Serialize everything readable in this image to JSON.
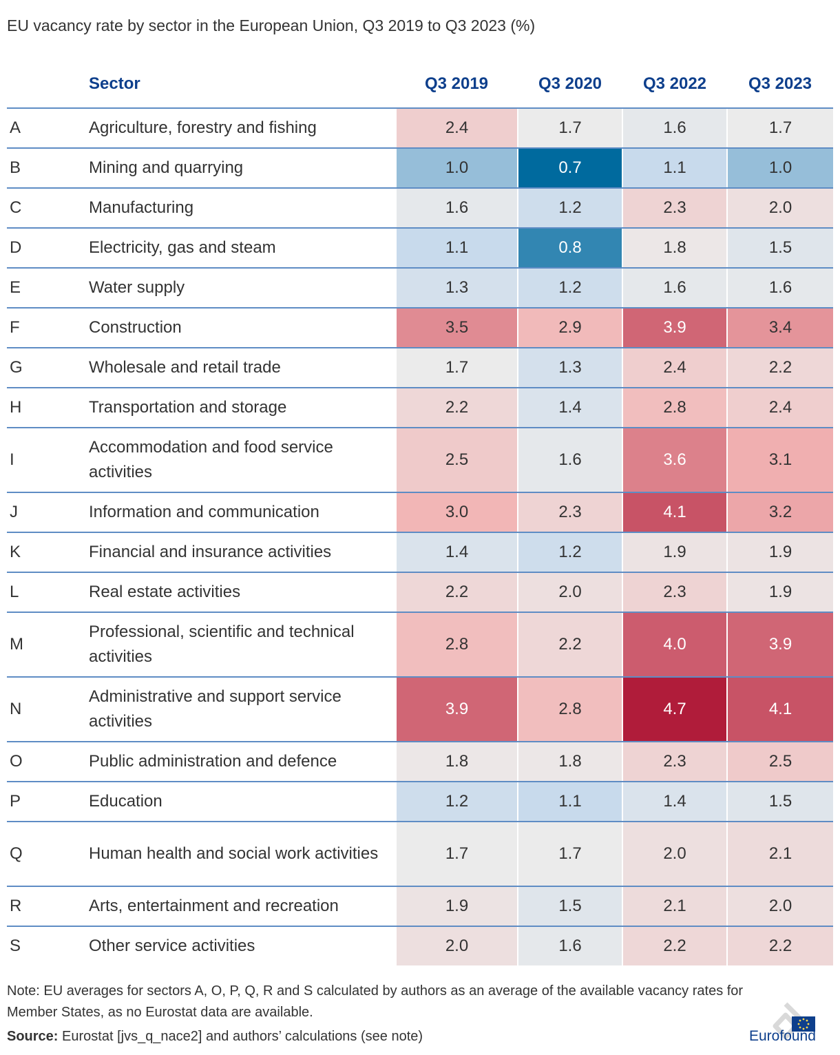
{
  "title": "EU vacancy rate by sector in the European Union, Q3 2019 to Q3 2023 (%)",
  "header": {
    "sector": "Sector",
    "q2019": "Q3 2019",
    "q2020": "Q3 2020",
    "q2022": "Q3 2022",
    "q2023": "Q3 2023"
  },
  "chart_data": {
    "type": "heatmap",
    "title": "EU vacancy rate by sector in the European Union, Q3 2019 to Q3 2023 (%)",
    "columns": [
      "Q3 2019",
      "Q3 2020",
      "Q3 2022",
      "Q3 2023"
    ],
    "rows": [
      {
        "code": "A",
        "sector": "Agriculture, forestry and fishing",
        "values": [
          2.4,
          1.7,
          1.6,
          1.7
        ]
      },
      {
        "code": "B",
        "sector": "Mining and quarrying",
        "values": [
          1.0,
          0.7,
          1.1,
          1.0
        ]
      },
      {
        "code": "C",
        "sector": "Manufacturing",
        "values": [
          1.6,
          1.2,
          2.3,
          2.0
        ]
      },
      {
        "code": "D",
        "sector": "Electricity, gas and steam",
        "values": [
          1.1,
          0.8,
          1.8,
          1.5
        ]
      },
      {
        "code": "E",
        "sector": "Water supply",
        "values": [
          1.3,
          1.2,
          1.6,
          1.6
        ]
      },
      {
        "code": "F",
        "sector": "Construction",
        "values": [
          3.5,
          2.9,
          3.9,
          3.4
        ]
      },
      {
        "code": "G",
        "sector": "Wholesale and retail trade",
        "values": [
          1.7,
          1.3,
          2.4,
          2.2
        ]
      },
      {
        "code": "H",
        "sector": "Transportation and storage",
        "values": [
          2.2,
          1.4,
          2.8,
          2.4
        ]
      },
      {
        "code": "I",
        "sector": "Accommodation and food service activities",
        "values": [
          2.5,
          1.6,
          3.6,
          3.1
        ]
      },
      {
        "code": "J",
        "sector": "Information and communication",
        "values": [
          3.0,
          2.3,
          4.1,
          3.2
        ]
      },
      {
        "code": "K",
        "sector": "Financial and insurance activities",
        "values": [
          1.4,
          1.2,
          1.9,
          1.9
        ]
      },
      {
        "code": "L",
        "sector": "Real estate activities",
        "values": [
          2.2,
          2.0,
          2.3,
          1.9
        ]
      },
      {
        "code": "M",
        "sector": "Professional, scientific and technical activities",
        "values": [
          2.8,
          2.2,
          4.0,
          3.9
        ]
      },
      {
        "code": "N",
        "sector": "Administrative and support service activities",
        "values": [
          3.9,
          2.8,
          4.7,
          4.1
        ]
      },
      {
        "code": "O",
        "sector": "Public administration and defence",
        "values": [
          1.8,
          1.8,
          2.3,
          2.5
        ]
      },
      {
        "code": "P",
        "sector": "Education",
        "values": [
          1.2,
          1.1,
          1.4,
          1.5
        ]
      },
      {
        "code": "Q",
        "sector": "Human health and social work activities",
        "values": [
          1.7,
          1.7,
          2.0,
          2.1
        ]
      },
      {
        "code": "R",
        "sector": "Arts, entertainment and recreation",
        "values": [
          1.9,
          1.5,
          2.1,
          2.0
        ]
      },
      {
        "code": "S",
        "sector": "Other service activities",
        "values": [
          2.0,
          1.6,
          2.2,
          2.2
        ]
      }
    ],
    "color_scale": {
      "low": "#006a9e",
      "mid": "#ebebeb",
      "high": "#b01c3a"
    }
  },
  "note": "Note: EU averages for sectors A, O, P, Q, R and S calculated by authors as an average of the available vacancy rates for Member States, as no Eurostat data are available.",
  "source_label": "Source:",
  "source_text": " Eurostat [jvs_q_nace2] and authors’ calculations (see note)",
  "logo_text": "Eurofound"
}
